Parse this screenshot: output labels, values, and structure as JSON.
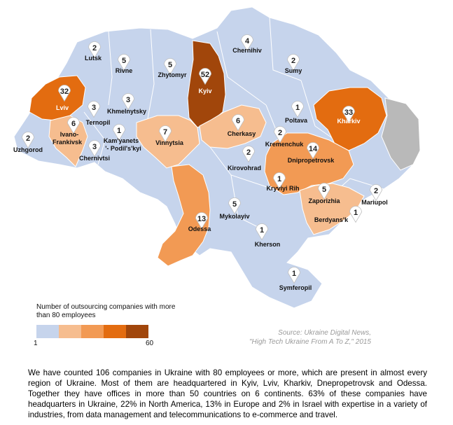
{
  "map": {
    "colors": {
      "scale": [
        "#c6d4ec",
        "#f6bd8f",
        "#f29a54",
        "#e36c10",
        "#a1460b"
      ],
      "gray": "#b9b9b9",
      "border": "#ffffff"
    },
    "cities": [
      {
        "id": "lutsk",
        "name": "Lutsk",
        "count": "2"
      },
      {
        "id": "rivne",
        "name": "Rivne",
        "count": "5"
      },
      {
        "id": "zhytomyr",
        "name": "Zhytomyr",
        "count": "5"
      },
      {
        "id": "kyiv",
        "name": "Kyiv",
        "count": "52"
      },
      {
        "id": "chernihiv",
        "name": "Chernihiv",
        "count": "4"
      },
      {
        "id": "sumy",
        "name": "Sumy",
        "count": "2"
      },
      {
        "id": "lviv",
        "name": "Lviv",
        "count": "32"
      },
      {
        "id": "ternopil",
        "name": "Ternopil",
        "count": "3"
      },
      {
        "id": "khmelnytsky",
        "name": "Khmelnytsky",
        "count": "3"
      },
      {
        "id": "poltava",
        "name": "Poltava",
        "count": "1"
      },
      {
        "id": "kharkiv",
        "name": "Kharkiv",
        "count": "33"
      },
      {
        "id": "uzhgorod",
        "name": "Uzhgorod",
        "count": "2"
      },
      {
        "id": "ivano",
        "name": "Ivano-Frankivsk",
        "count": "6"
      },
      {
        "id": "kamyanets",
        "name": "Kam'yanets'- Podil's'kyi",
        "count": "1"
      },
      {
        "id": "chernivtsi",
        "name": "Chernivtsi",
        "count": "3"
      },
      {
        "id": "vinnytsia",
        "name": "Vinnytsia",
        "count": "7"
      },
      {
        "id": "cherkasy",
        "name": "Cherkasy",
        "count": "6"
      },
      {
        "id": "kremenchuk",
        "name": "Kremenchuk",
        "count": "2"
      },
      {
        "id": "dnipro",
        "name": "Dnipropetrovsk",
        "count": "14"
      },
      {
        "id": "kirovohrad",
        "name": "Kirovohrad",
        "count": "2"
      },
      {
        "id": "kryvyi",
        "name": "Kryviyi Rih",
        "count": "1"
      },
      {
        "id": "zaporizhia",
        "name": "Zaporizhia",
        "count": "5"
      },
      {
        "id": "mariupol",
        "name": "Mariupol",
        "count": "2"
      },
      {
        "id": "berdyansk",
        "name": "Berdyans'k",
        "count": "1"
      },
      {
        "id": "odessa",
        "name": "Odessa",
        "count": "13"
      },
      {
        "id": "mykolayiv",
        "name": "Mykolayiv",
        "count": "5"
      },
      {
        "id": "kherson",
        "name": "Kherson",
        "count": "1"
      },
      {
        "id": "symferopil",
        "name": "Symferopil",
        "count": "1"
      }
    ]
  },
  "legend": {
    "title": "Number of outsourcing companies with more than 80 employees",
    "min": "1",
    "max": "60"
  },
  "source": {
    "line1": "Source: Ukraine Digital News,",
    "line2": "\"High Tech Ukraine From A To Z,\" 2015"
  },
  "body_text": "We have counted 106 companies in Ukraine with 80 employees or more, which are present in almost every region of Ukraine. Most of them are headquartered in Kyiv, Lviv, Kharkiv, Dnepropetrovsk and Odessa. Together they have offices in more than 50 countries on 6 continents. 63% of these companies have headquarters in Ukraine, 22% in North America, 13% in Europe and 2% in Israel with expertise in a variety of industries, from data management and telecommunications to e-commerce and travel."
}
